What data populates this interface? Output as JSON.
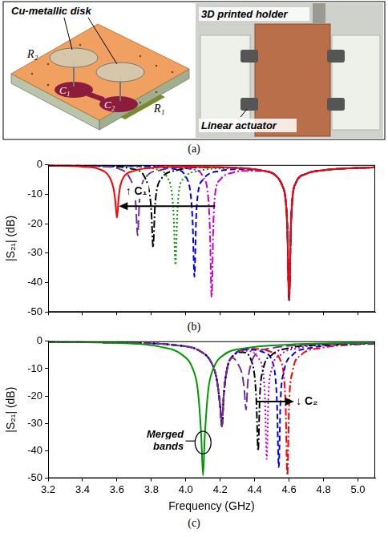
{
  "panel_a": {
    "panel_label": "(a)",
    "disk_label": "Cu-metallic disk",
    "resonator_labels": [
      "R₂",
      "R₁"
    ],
    "capacitor_labels": [
      "C₁",
      "C₂"
    ],
    "holder_label": "3D printed holder",
    "actuator_label": "Linear actuator"
  },
  "chart_data": [
    {
      "type": "line",
      "panel_label": "(b)",
      "y_label": "|S₂₁| (dB)",
      "xlim": [
        3.2,
        5.1
      ],
      "xticks": [
        3.2,
        3.4,
        3.6,
        3.8,
        {
          "value": 4,
          "label": "4.0"
        },
        4.2,
        4.4,
        4.6,
        4.8,
        {
          "value": 5,
          "label": "5.0"
        }
      ],
      "ylim": [
        -50,
        0
      ],
      "yticks": [
        -50,
        -40,
        -30,
        -20,
        -10,
        0
      ],
      "grid": false,
      "tick_labels": "y",
      "annotations": [
        "↑ C₁"
      ],
      "series": [
        {
          "color": "#ff0000",
          "line_style": "solid",
          "x": [
            3.2,
            3.4,
            3.5,
            3.56,
            3.58,
            3.59,
            3.6,
            3.61,
            3.62,
            3.64,
            3.7,
            3.8,
            4.0,
            4.3,
            4.45,
            4.52,
            4.56,
            4.58,
            4.59,
            4.6,
            4.61,
            4.62,
            4.64,
            4.7,
            4.8,
            5.1
          ],
          "values": [
            -0.2,
            -0.6,
            -1.5,
            -4.5,
            -8,
            -12,
            -18,
            -11,
            -7,
            -4,
            -2,
            -1,
            -0.6,
            -1,
            -2,
            -3.5,
            -7,
            -12,
            -22,
            -46,
            -22,
            -11,
            -6,
            -3,
            -1.8,
            -0.8
          ]
        },
        {
          "color": "#7030a0",
          "line_style": "longdash",
          "x": [
            3.2,
            3.5,
            3.62,
            3.67,
            3.7,
            3.71,
            3.72,
            3.73,
            3.74,
            3.77,
            3.85,
            4.0,
            4.3,
            4.45,
            4.52,
            4.56,
            4.58,
            4.59,
            4.6,
            4.61,
            4.62,
            4.64,
            4.7,
            4.8,
            5.1
          ],
          "values": [
            -0.2,
            -0.5,
            -1.5,
            -4,
            -9,
            -14,
            -24,
            -13,
            -8,
            -4,
            -1.8,
            -0.8,
            -1,
            -2,
            -3.5,
            -7,
            -12,
            -22,
            -46,
            -22,
            -11,
            -6,
            -3,
            -1.8,
            -0.8
          ]
        },
        {
          "color": "#000000",
          "line_style": "dashdot",
          "x": [
            3.2,
            3.5,
            3.7,
            3.76,
            3.79,
            3.8,
            3.81,
            3.82,
            3.83,
            3.86,
            3.95,
            4.1,
            4.3,
            4.45,
            4.52,
            4.56,
            4.58,
            4.59,
            4.6,
            4.61,
            4.62,
            4.64,
            4.7,
            4.8,
            5.1
          ],
          "values": [
            -0.2,
            -0.4,
            -1.5,
            -4,
            -10,
            -16,
            -28,
            -15,
            -9,
            -4.5,
            -1.8,
            -0.8,
            -1,
            -2,
            -3.5,
            -7,
            -12,
            -22,
            -46,
            -22,
            -11,
            -6,
            -3,
            -1.8,
            -0.8
          ]
        },
        {
          "color": "#009900",
          "line_style": "dotted",
          "x": [
            3.2,
            3.6,
            3.83,
            3.89,
            3.92,
            3.93,
            3.94,
            3.95,
            3.96,
            3.99,
            4.08,
            4.2,
            4.3,
            4.45,
            4.52,
            4.56,
            4.58,
            4.59,
            4.6,
            4.61,
            4.62,
            4.64,
            4.7,
            4.8,
            5.1
          ],
          "values": [
            -0.2,
            -0.4,
            -1.5,
            -4,
            -10,
            -18,
            -34,
            -17,
            -9,
            -4.5,
            -2,
            -1.2,
            -1.2,
            -2,
            -3.5,
            -7,
            -12,
            -22,
            -46,
            -22,
            -11,
            -6,
            -3,
            -1.8,
            -0.8
          ]
        },
        {
          "color": "#0000ff",
          "line_style": "dashed",
          "x": [
            3.2,
            3.7,
            3.94,
            4.0,
            4.03,
            4.04,
            4.05,
            4.06,
            4.07,
            4.1,
            4.2,
            4.3,
            4.45,
            4.52,
            4.56,
            4.58,
            4.59,
            4.6,
            4.61,
            4.62,
            4.64,
            4.7,
            4.8,
            5.1
          ],
          "values": [
            -0.1,
            -0.4,
            -1.5,
            -4,
            -11,
            -20,
            -38,
            -18,
            -10,
            -5,
            -2,
            -1.5,
            -2,
            -3.5,
            -7,
            -12,
            -22,
            -46,
            -22,
            -11,
            -6,
            -3,
            -1.8,
            -0.8
          ]
        },
        {
          "color": "#cc00cc",
          "line_style": "dashdot",
          "x": [
            3.2,
            3.8,
            4.04,
            4.1,
            4.13,
            4.14,
            4.15,
            4.16,
            4.17,
            4.2,
            4.28,
            4.36,
            4.45,
            4.52,
            4.56,
            4.58,
            4.59,
            4.6,
            4.61,
            4.62,
            4.64,
            4.7,
            4.8,
            5.1
          ],
          "values": [
            -0.1,
            -0.4,
            -1.5,
            -4,
            -11,
            -22,
            -45,
            -20,
            -10,
            -5,
            -2.5,
            -2,
            -2,
            -3.5,
            -7,
            -12,
            -22,
            -46,
            -22,
            -11,
            -6,
            -3,
            -1.8,
            -0.8
          ]
        }
      ]
    },
    {
      "type": "line",
      "panel_label": "(c)",
      "x_label": "Frequency (GHz)",
      "y_label": "|S₂₁| (dB)",
      "xlim": [
        3.2,
        5.1
      ],
      "xticks": [
        3.2,
        3.4,
        3.6,
        3.8,
        {
          "value": 4,
          "label": "4.0"
        },
        4.2,
        4.4,
        4.6,
        4.8,
        {
          "value": 5,
          "label": "5.0"
        }
      ],
      "ylim": [
        -50,
        0
      ],
      "yticks": [
        -50,
        -40,
        -30,
        -20,
        -10,
        0
      ],
      "grid": false,
      "annotations": [
        "Merged bands",
        "↓ C₂"
      ],
      "series": [
        {
          "color": "#009900",
          "line_style": "solid",
          "x": [
            3.2,
            3.6,
            3.85,
            3.98,
            4.04,
            4.07,
            4.09,
            4.1,
            4.11,
            4.13,
            4.16,
            4.22,
            4.35,
            4.6,
            5.1
          ],
          "values": [
            -0.2,
            -0.6,
            -2,
            -5,
            -10,
            -18,
            -35,
            -49,
            -35,
            -18,
            -10,
            -5,
            -2.5,
            -1.2,
            -0.5
          ]
        },
        {
          "color": "#7030a0",
          "line_style": "longdash",
          "x": [
            3.2,
            3.6,
            3.95,
            4.08,
            4.15,
            4.18,
            4.2,
            4.21,
            4.22,
            4.24,
            4.27,
            4.3,
            4.33,
            4.34,
            4.35,
            4.36,
            4.38,
            4.42,
            4.5,
            4.7,
            5.1
          ],
          "values": [
            -0.2,
            -0.5,
            -1.5,
            -3.5,
            -8,
            -14,
            -24,
            -31,
            -20,
            -10,
            -6,
            -8,
            -13,
            -18,
            -25,
            -15,
            -8,
            -4,
            -2.5,
            -1.2,
            -0.6
          ]
        },
        {
          "color": "#000000",
          "line_style": "dashdot",
          "x": [
            3.2,
            3.6,
            3.95,
            4.08,
            4.15,
            4.18,
            4.2,
            4.21,
            4.22,
            4.24,
            4.28,
            4.33,
            4.38,
            4.4,
            4.41,
            4.42,
            4.43,
            4.45,
            4.5,
            4.6,
            4.8,
            5.1
          ],
          "values": [
            -0.2,
            -0.5,
            -1.5,
            -3.5,
            -8,
            -14,
            -24,
            -31,
            -20,
            -10,
            -5,
            -4,
            -7,
            -13,
            -22,
            -40,
            -20,
            -10,
            -5,
            -2.5,
            -1.2,
            -0.6
          ]
        },
        {
          "color": "#cc00cc",
          "line_style": "dotted",
          "x": [
            3.2,
            3.6,
            3.95,
            4.08,
            4.15,
            4.18,
            4.2,
            4.21,
            4.22,
            4.24,
            4.28,
            4.35,
            4.42,
            4.45,
            4.46,
            4.47,
            4.48,
            4.5,
            4.55,
            4.65,
            4.85,
            5.1
          ],
          "values": [
            -0.2,
            -0.5,
            -1.5,
            -3.5,
            -8,
            -14,
            -24,
            -31,
            -20,
            -10,
            -5,
            -3.5,
            -6,
            -12,
            -21,
            -43,
            -20,
            -10,
            -5,
            -2.5,
            -1.2,
            -0.6
          ]
        },
        {
          "color": "#0000ff",
          "line_style": "dashed",
          "x": [
            3.2,
            3.6,
            3.95,
            4.08,
            4.15,
            4.18,
            4.2,
            4.21,
            4.22,
            4.24,
            4.28,
            4.35,
            4.45,
            4.5,
            4.52,
            4.53,
            4.54,
            4.55,
            4.57,
            4.62,
            4.72,
            4.9,
            5.1
          ],
          "values": [
            -0.2,
            -0.5,
            -1.5,
            -3.5,
            -8,
            -14,
            -24,
            -31,
            -20,
            -10,
            -5,
            -3,
            -4,
            -7,
            -13,
            -23,
            -46,
            -22,
            -11,
            -5,
            -2.5,
            -1.2,
            -0.8
          ]
        },
        {
          "color": "#ff0000",
          "line_style": "dashdot",
          "x": [
            3.2,
            3.6,
            3.95,
            4.08,
            4.15,
            4.18,
            4.2,
            4.21,
            4.22,
            4.24,
            4.28,
            4.38,
            4.5,
            4.55,
            4.57,
            4.58,
            4.59,
            4.6,
            4.62,
            4.67,
            4.78,
            4.95,
            5.1
          ],
          "values": [
            -0.2,
            -0.5,
            -1.5,
            -3.5,
            -8,
            -14,
            -24,
            -31,
            -20,
            -10,
            -5,
            -2.8,
            -4,
            -7,
            -13,
            -24,
            -49,
            -23,
            -11,
            -5,
            -2.5,
            -1.3,
            -0.9
          ]
        }
      ]
    }
  ]
}
